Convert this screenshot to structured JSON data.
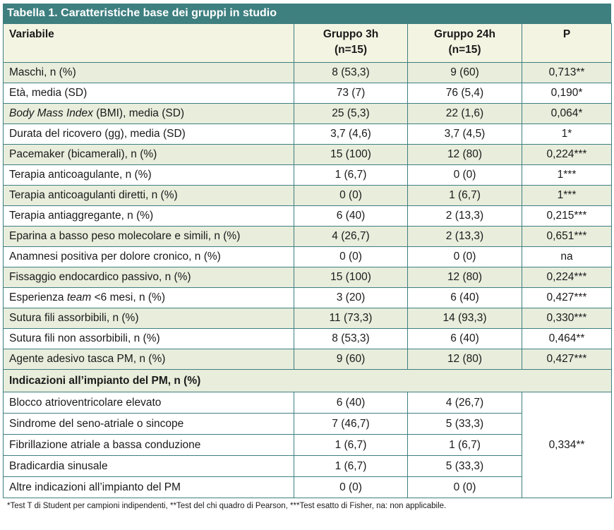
{
  "title": "Tabella 1. Caratteristiche base dei gruppi in studio",
  "headers": {
    "variable": "Variabile",
    "group3_line1": "Gruppo 3h",
    "group3_line2": "(n=15)",
    "group24_line1": "Gruppo 24h",
    "group24_line2": "(n=15)",
    "p": "P"
  },
  "rows": [
    {
      "label": "Maschi, n (%)",
      "g3": "8 (53,3)",
      "g24": "9 (60)",
      "p": "0,713**"
    },
    {
      "label": "Età, media (SD)",
      "g3": "73 (7)",
      "g24": "76 (5,4)",
      "p": "0,190*"
    },
    {
      "label_italic": "Body Mass Index",
      "label_rest": " (BMI), media (SD)",
      "g3": "25 (5,3)",
      "g24": "22 (1,6)",
      "p": "0,064*"
    },
    {
      "label": "Durata del ricovero (gg), media (SD)",
      "g3": "3,7 (4,6)",
      "g24": "3,7 (4,5)",
      "p": "1*"
    },
    {
      "label": "Pacemaker (bicamerali), n (%)",
      "g3": "15 (100)",
      "g24": "12 (80)",
      "p": "0,224***"
    },
    {
      "label": "Terapia anticoagulante, n (%)",
      "g3": "1 (6,7)",
      "g24": "0 (0)",
      "p": "1***"
    },
    {
      "label": "Terapia anticoagulanti diretti, n (%)",
      "g3": "0 (0)",
      "g24": "1 (6,7)",
      "p": "1***"
    },
    {
      "label": "Terapia antiaggregante, n (%)",
      "g3": "6 (40)",
      "g24": "2 (13,3)",
      "p": "0,215***"
    },
    {
      "label": "Eparina a basso peso molecolare e simili, n (%)",
      "g3": "4 (26,7)",
      "g24": "2 (13,3)",
      "p": "0,651***"
    },
    {
      "label": "Anamnesi positiva per dolore cronico, n (%)",
      "g3": "0 (0)",
      "g24": "0 (0)",
      "p": "na"
    },
    {
      "label": "Fissaggio endocardico passivo, n (%)",
      "g3": "15 (100)",
      "g24": "12 (80)",
      "p": "0,224***"
    },
    {
      "label_pre": "Esperienza ",
      "label_italic": "team",
      "label_rest": " <6 mesi, n (%)",
      "g3": "3 (20)",
      "g24": "6 (40)",
      "p": "0,427***"
    },
    {
      "label": "Sutura fili assorbibili, n (%)",
      "g3": "11 (73,3)",
      "g24": "14 (93,3)",
      "p": "0,330***"
    },
    {
      "label": "Sutura fili non assorbibili, n (%)",
      "g3": "8 (53,3)",
      "g24": "6 (40)",
      "p": "0,464**"
    },
    {
      "label": "Agente adesivo tasca PM, n (%)",
      "g3": "9 (60)",
      "g24": "12 (80)",
      "p": "0,427***"
    }
  ],
  "section_title": "Indicazioni all’impianto del PM, n (%)",
  "indication_rows": [
    {
      "label": "Blocco atrioventricolare elevato",
      "g3": "6 (40)",
      "g24": "4 (26,7)"
    },
    {
      "label": "Sindrome del seno-atriale o sincope",
      "g3": "7 (46,7)",
      "g24": "5 (33,3)"
    },
    {
      "label": "Fibrillazione atriale a bassa conduzione",
      "g3": "1 (6,7)",
      "g24": "1 (6,7)"
    },
    {
      "label": "Bradicardia sinusale",
      "g3": "1 (6,7)",
      "g24": "5 (33,3)"
    },
    {
      "label": "Altre indicazioni all’impianto del PM",
      "g3": "0 (0)",
      "g24": "0 (0)"
    }
  ],
  "indication_p": "0,334**",
  "footnote": "*Test T di Student per campioni indipendenti, **Test del chi quadro di Pearson, ***Test esatto di Fisher, na: non applicabile.",
  "colors": {
    "header_bar": "#3e7f80",
    "row_band": "#e8eddc",
    "header_row": "#f3f4e2",
    "border": "#3e7f80"
  }
}
